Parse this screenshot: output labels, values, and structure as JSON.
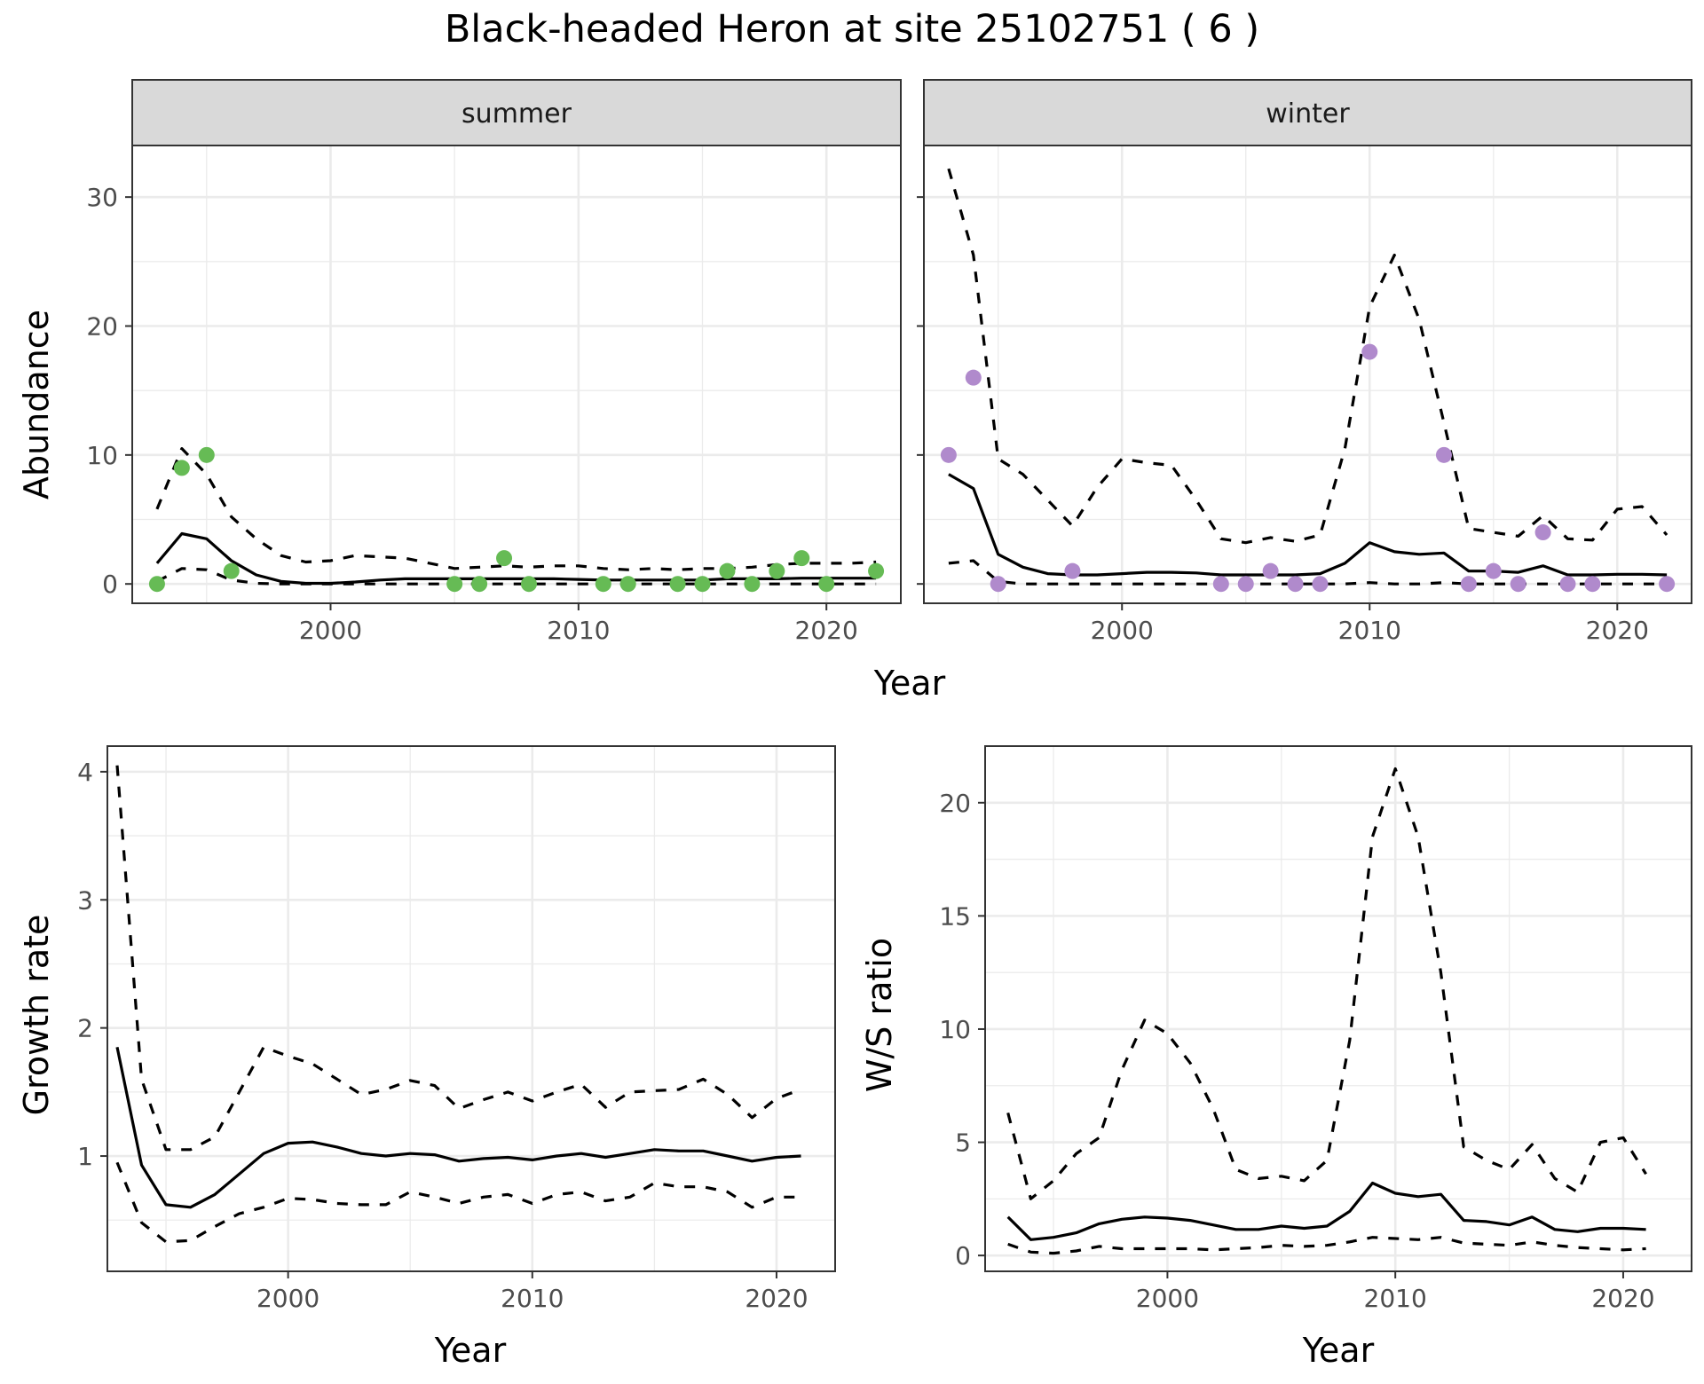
{
  "title": "Black-headed Heron at site 25102751 ( 6 )",
  "chart_data": [
    {
      "type": "line",
      "facet": "summer",
      "xlabel": "Year",
      "ylabel": "Abundance",
      "xlim": [
        1992,
        2023
      ],
      "ylim": [
        -1.5,
        34
      ],
      "xticks": [
        2000,
        2010,
        2020
      ],
      "yticks": [
        0,
        10,
        20,
        30
      ],
      "point_color": "#66bb55",
      "estimate": {
        "x": [
          1993,
          1994,
          1995,
          1996,
          1997,
          1998,
          1999,
          2000,
          2001,
          2002,
          2003,
          2004,
          2005,
          2006,
          2007,
          2008,
          2009,
          2010,
          2011,
          2012,
          2013,
          2014,
          2015,
          2016,
          2017,
          2018,
          2019,
          2020,
          2021,
          2022
        ],
        "y": [
          1.6,
          3.9,
          3.5,
          1.8,
          0.7,
          0.2,
          0.05,
          0.05,
          0.15,
          0.3,
          0.4,
          0.4,
          0.4,
          0.4,
          0.4,
          0.4,
          0.4,
          0.35,
          0.3,
          0.3,
          0.3,
          0.3,
          0.3,
          0.4,
          0.4,
          0.4,
          0.45,
          0.45,
          0.45,
          0.45
        ]
      },
      "upper": {
        "x": [
          1993,
          1994,
          1995,
          1996,
          1997,
          1998,
          1999,
          2000,
          2001,
          2002,
          2003,
          2004,
          2005,
          2006,
          2007,
          2008,
          2009,
          2010,
          2011,
          2012,
          2013,
          2014,
          2015,
          2016,
          2017,
          2018,
          2019,
          2020,
          2021,
          2022
        ],
        "y": [
          5.8,
          10.5,
          8.5,
          5.2,
          3.5,
          2.2,
          1.7,
          1.8,
          2.2,
          2.1,
          2.0,
          1.6,
          1.2,
          1.3,
          1.4,
          1.3,
          1.4,
          1.4,
          1.2,
          1.1,
          1.2,
          1.1,
          1.2,
          1.2,
          1.3,
          1.5,
          1.6,
          1.6,
          1.6,
          1.7
        ]
      },
      "lower": {
        "x": [
          1993,
          1994,
          1995,
          1996,
          1997,
          1998,
          1999,
          2000,
          2001,
          2002,
          2003,
          2004,
          2005,
          2006,
          2007,
          2008,
          2009,
          2010,
          2011,
          2012,
          2013,
          2014,
          2015,
          2016,
          2017,
          2018,
          2019,
          2020,
          2021,
          2022
        ],
        "y": [
          0.2,
          1.2,
          1.1,
          0.3,
          0.05,
          0,
          0,
          0,
          0,
          0,
          0,
          0,
          0,
          0,
          0,
          0,
          0,
          0,
          0,
          0,
          0,
          0,
          0,
          0,
          0,
          0,
          0,
          0,
          0,
          0
        ]
      },
      "points": {
        "x": [
          1993,
          1994,
          1995,
          1996,
          2005,
          2006,
          2007,
          2008,
          2011,
          2012,
          2014,
          2015,
          2016,
          2017,
          2018,
          2019,
          2020,
          2022
        ],
        "y": [
          0,
          9,
          10,
          1,
          0,
          0,
          2,
          0,
          0,
          0,
          0,
          0,
          1,
          0,
          1,
          2,
          0,
          1
        ]
      }
    },
    {
      "type": "line",
      "facet": "winter",
      "xlabel": "Year",
      "ylabel": "Abundance",
      "xlim": [
        1992,
        2023
      ],
      "ylim": [
        -1.5,
        34
      ],
      "xticks": [
        2000,
        2010,
        2020
      ],
      "yticks": [
        0,
        10,
        20,
        30
      ],
      "point_color": "#b08acc",
      "estimate": {
        "x": [
          1993,
          1994,
          1995,
          1996,
          1997,
          1998,
          1999,
          2000,
          2001,
          2002,
          2003,
          2004,
          2005,
          2006,
          2007,
          2008,
          2009,
          2010,
          2011,
          2012,
          2013,
          2014,
          2015,
          2016,
          2017,
          2018,
          2019,
          2020,
          2021,
          2022
        ],
        "y": [
          8.5,
          7.4,
          2.3,
          1.3,
          0.8,
          0.7,
          0.7,
          0.8,
          0.9,
          0.9,
          0.85,
          0.7,
          0.7,
          0.7,
          0.7,
          0.8,
          1.6,
          3.2,
          2.5,
          2.3,
          2.4,
          1.0,
          1.0,
          0.9,
          1.4,
          0.7,
          0.7,
          0.75,
          0.75,
          0.7
        ]
      },
      "upper": {
        "x": [
          1993,
          1994,
          1995,
          1996,
          1997,
          1998,
          1999,
          2000,
          2001,
          2002,
          2003,
          2004,
          2005,
          2006,
          2007,
          2008,
          2009,
          2010,
          2011,
          2012,
          2013,
          2014,
          2015,
          2016,
          2017,
          2018,
          2019,
          2020,
          2021,
          2022
        ],
        "y": [
          32.2,
          25.5,
          9.7,
          8.5,
          6.5,
          4.5,
          7.5,
          9.7,
          9.4,
          9.2,
          6.5,
          3.5,
          3.2,
          3.6,
          3.3,
          3.8,
          10.5,
          21.5,
          25.5,
          20.5,
          12.5,
          4.3,
          4.0,
          3.7,
          5.3,
          3.5,
          3.4,
          5.8,
          6.0,
          3.8
        ]
      },
      "lower": {
        "x": [
          1993,
          1994,
          1995,
          1996,
          1997,
          1998,
          1999,
          2000,
          2001,
          2002,
          2003,
          2004,
          2005,
          2006,
          2007,
          2008,
          2009,
          2010,
          2011,
          2012,
          2013,
          2014,
          2015,
          2016,
          2017,
          2018,
          2019,
          2020,
          2021,
          2022
        ],
        "y": [
          1.6,
          1.8,
          0.2,
          0,
          0,
          0,
          0,
          0,
          0,
          0,
          0,
          0,
          0,
          0,
          0,
          0,
          0,
          0.1,
          0,
          0,
          0.1,
          0,
          0,
          0,
          0,
          0,
          0,
          0,
          0,
          0
        ]
      },
      "points": {
        "x": [
          1993,
          1994,
          1995,
          1998,
          2004,
          2005,
          2006,
          2007,
          2008,
          2010,
          2013,
          2014,
          2015,
          2016,
          2017,
          2018,
          2019,
          2022
        ],
        "y": [
          10,
          16,
          0,
          1,
          0,
          0,
          1,
          0,
          0,
          18,
          10,
          0,
          1,
          0,
          4,
          0,
          0,
          0
        ]
      }
    },
    {
      "type": "line",
      "xlabel": "Year",
      "ylabel": "Growth rate",
      "xlim": [
        1992.6,
        2022.4
      ],
      "ylim": [
        0.1,
        4.2
      ],
      "xticks": [
        2000,
        2010,
        2020
      ],
      "yticks": [
        1,
        2,
        3,
        4
      ],
      "estimate": {
        "x": [
          1993,
          1994,
          1995,
          1996,
          1997,
          1998,
          1999,
          2000,
          2001,
          2002,
          2003,
          2004,
          2005,
          2006,
          2007,
          2008,
          2009,
          2010,
          2011,
          2012,
          2013,
          2014,
          2015,
          2016,
          2017,
          2018,
          2019,
          2020,
          2021
        ],
        "y": [
          1.85,
          0.93,
          0.62,
          0.6,
          0.7,
          0.86,
          1.02,
          1.1,
          1.11,
          1.07,
          1.02,
          1.0,
          1.02,
          1.01,
          0.96,
          0.98,
          0.99,
          0.97,
          1.0,
          1.02,
          0.99,
          1.02,
          1.05,
          1.04,
          1.04,
          1.0,
          0.96,
          0.99,
          1.0
        ]
      },
      "upper": {
        "x": [
          1993,
          1994,
          1995,
          1996,
          1997,
          1998,
          1999,
          2000,
          2001,
          2002,
          2003,
          2004,
          2005,
          2006,
          2007,
          2008,
          2009,
          2010,
          2011,
          2012,
          2013,
          2014,
          2015,
          2016,
          2017,
          2018,
          2019,
          2020,
          2021
        ],
        "y": [
          4.05,
          1.6,
          1.05,
          1.05,
          1.15,
          1.5,
          1.85,
          1.78,
          1.72,
          1.6,
          1.48,
          1.52,
          1.59,
          1.55,
          1.37,
          1.44,
          1.5,
          1.43,
          1.5,
          1.56,
          1.38,
          1.5,
          1.51,
          1.52,
          1.6,
          1.48,
          1.3,
          1.45,
          1.52
        ]
      },
      "lower": {
        "x": [
          1993,
          1994,
          1995,
          1996,
          1997,
          1998,
          1999,
          2000,
          2001,
          2002,
          2003,
          2004,
          2005,
          2006,
          2007,
          2008,
          2009,
          2010,
          2011,
          2012,
          2013,
          2014,
          2015,
          2016,
          2017,
          2018,
          2019,
          2020,
          2021
        ],
        "y": [
          0.95,
          0.48,
          0.33,
          0.34,
          0.45,
          0.55,
          0.6,
          0.67,
          0.66,
          0.63,
          0.62,
          0.62,
          0.72,
          0.68,
          0.63,
          0.68,
          0.7,
          0.63,
          0.7,
          0.72,
          0.65,
          0.68,
          0.79,
          0.76,
          0.76,
          0.72,
          0.6,
          0.68,
          0.68
        ]
      }
    },
    {
      "type": "line",
      "xlabel": "Year",
      "ylabel": "W/S ratio",
      "xlim": [
        1992,
        2023
      ],
      "ylim": [
        -0.7,
        22.5
      ],
      "xticks": [
        2000,
        2010,
        2020
      ],
      "yticks": [
        0,
        5,
        10,
        15,
        20
      ],
      "estimate": {
        "x": [
          1993,
          1994,
          1995,
          1996,
          1997,
          1998,
          1999,
          2000,
          2001,
          2002,
          2003,
          2004,
          2005,
          2006,
          2007,
          2008,
          2009,
          2010,
          2011,
          2012,
          2013,
          2014,
          2015,
          2016,
          2017,
          2018,
          2019,
          2020,
          2021
        ],
        "y": [
          1.7,
          0.7,
          0.8,
          1.0,
          1.4,
          1.6,
          1.7,
          1.65,
          1.55,
          1.35,
          1.15,
          1.15,
          1.3,
          1.2,
          1.3,
          1.95,
          3.2,
          2.75,
          2.6,
          2.7,
          1.55,
          1.5,
          1.35,
          1.7,
          1.15,
          1.05,
          1.2,
          1.2,
          1.15
        ]
      },
      "upper": {
        "x": [
          1993,
          1994,
          1995,
          1996,
          1997,
          1998,
          1999,
          2000,
          2001,
          2002,
          2003,
          2004,
          2005,
          2006,
          2007,
          2008,
          2009,
          2010,
          2011,
          2012,
          2013,
          2014,
          2015,
          2016,
          2017,
          2018,
          2019,
          2020,
          2021
        ],
        "y": [
          6.3,
          2.5,
          3.3,
          4.5,
          5.2,
          8.2,
          10.4,
          9.8,
          8.5,
          6.5,
          3.8,
          3.4,
          3.5,
          3.3,
          4.2,
          9.5,
          18.5,
          21.5,
          18.5,
          12.5,
          4.8,
          4.2,
          3.8,
          4.9,
          3.4,
          2.8,
          5.0,
          5.2,
          3.6
        ]
      },
      "lower": {
        "x": [
          1993,
          1994,
          1995,
          1996,
          1997,
          1998,
          1999,
          2000,
          2001,
          2002,
          2003,
          2004,
          2005,
          2006,
          2007,
          2008,
          2009,
          2010,
          2011,
          2012,
          2013,
          2014,
          2015,
          2016,
          2017,
          2018,
          2019,
          2020,
          2021
        ],
        "y": [
          0.5,
          0.15,
          0.1,
          0.2,
          0.4,
          0.3,
          0.3,
          0.3,
          0.3,
          0.25,
          0.3,
          0.35,
          0.45,
          0.4,
          0.45,
          0.6,
          0.8,
          0.75,
          0.7,
          0.8,
          0.55,
          0.5,
          0.45,
          0.6,
          0.45,
          0.35,
          0.3,
          0.25,
          0.3
        ]
      }
    }
  ]
}
